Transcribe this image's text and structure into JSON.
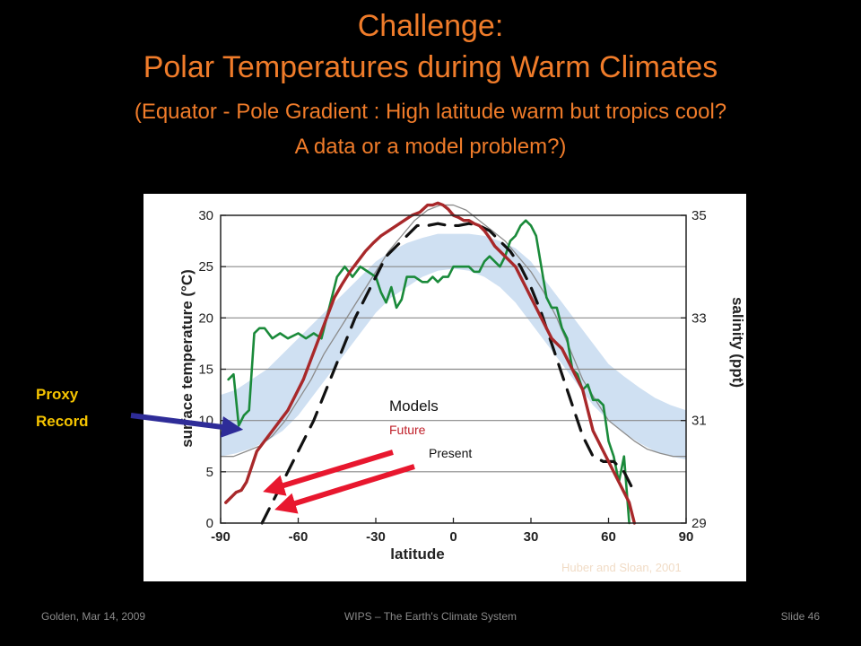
{
  "slide": {
    "title_line1": "Challenge:",
    "title_line2": "Polar Temperatures during Warm Climates",
    "title_line3": "(Equator - Pole Gradient : High latitude warm but tropics cool?",
    "title_line4": "A data or a model problem?)",
    "proxy_label_line1": "Proxy",
    "proxy_label_line2": "Record",
    "footer_left": "Golden, Mar 14, 2009",
    "footer_center": "WIPS – The Earth's Climate System",
    "footer_right": "Slide 46",
    "colors": {
      "title": "#f07c2a",
      "proxy_label": "#f5c400",
      "arrow_blue": "#2e2c98",
      "arrow_red": "#e8172e"
    }
  },
  "chart_data": {
    "type": "line",
    "xlabel": "latitude",
    "ylabel": "surface temperature (°C)",
    "y2label": "salinity (ppt)",
    "xlim": [
      -90,
      90
    ],
    "ylim": [
      0,
      30
    ],
    "y2lim": [
      29,
      35
    ],
    "x_ticks": [
      -90,
      -60,
      -30,
      0,
      30,
      60,
      90
    ],
    "y_ticks": [
      0,
      5,
      10,
      15,
      20,
      25,
      30
    ],
    "y2_ticks": [
      29,
      31,
      33,
      35
    ],
    "grid": "horizontal",
    "legend": {
      "title": "Models",
      "future": "Future",
      "present": "Present"
    },
    "source": "Huber and Sloan, 2001",
    "series": [
      {
        "key": "proxy",
        "color": "#1a8a3a",
        "style": "solid",
        "x": [
          -87,
          -85,
          -83,
          -81,
          -79,
          -77,
          -75,
          -73,
          -70,
          -67,
          -64,
          -60,
          -57,
          -54,
          -51,
          -48,
          -45,
          -42,
          -39,
          -36,
          -33,
          -30,
          -28,
          -26,
          -24,
          -22,
          -20,
          -18,
          -15,
          -12,
          -10,
          -8,
          -6,
          -4,
          -2,
          0,
          2,
          4,
          6,
          8,
          10,
          12,
          14,
          16,
          18,
          20,
          22,
          24,
          26,
          28,
          30,
          32,
          34,
          36,
          38,
          40,
          42,
          44,
          46,
          48,
          50,
          52,
          54,
          56,
          58,
          60,
          62,
          64,
          66,
          68
        ],
        "y": [
          14,
          14.5,
          9.5,
          10.5,
          11,
          18.5,
          19,
          19,
          18,
          18.5,
          18,
          18.5,
          18,
          18.5,
          18,
          21,
          24,
          25,
          24,
          25,
          24.5,
          24,
          22.5,
          21.5,
          23,
          21,
          21.8,
          24,
          24,
          23.5,
          23.5,
          24,
          23.5,
          24,
          24,
          25,
          25,
          25,
          25,
          24.5,
          24.5,
          25.5,
          26,
          25.5,
          25,
          26,
          27.5,
          28,
          29,
          29.5,
          29,
          28,
          25,
          22,
          21,
          21,
          19,
          18,
          15,
          14.5,
          13,
          13.5,
          12,
          12,
          11.5,
          8,
          6.5,
          4,
          6.5,
          0
        ]
      },
      {
        "key": "future",
        "color": "#a8282a",
        "style": "solid",
        "x": [
          -88,
          -86,
          -84,
          -82,
          -80,
          -78,
          -76,
          -73,
          -70,
          -67,
          -64,
          -61,
          -58,
          -55,
          -52,
          -49,
          -46,
          -43,
          -40,
          -37,
          -34,
          -31,
          -28,
          -25,
          -22,
          -19,
          -16,
          -13,
          -10,
          -8,
          -6,
          -4,
          -2,
          0,
          2,
          4,
          6,
          8,
          10,
          12,
          14,
          16,
          18,
          20,
          22,
          24,
          26,
          28,
          30,
          32,
          34,
          36,
          38,
          40,
          42,
          44,
          46,
          48,
          50,
          52,
          54,
          56,
          58,
          60,
          62,
          64,
          66,
          68,
          70
        ],
        "y": [
          2,
          2.5,
          3,
          3.2,
          4,
          5.5,
          7,
          8,
          9,
          10,
          11,
          12.5,
          14,
          16,
          18,
          20,
          22,
          23.3,
          24.5,
          25.5,
          26.5,
          27.3,
          28,
          28.5,
          29,
          29.5,
          30,
          30.3,
          31,
          31,
          31.2,
          31,
          30.6,
          30,
          29.8,
          29.5,
          29.5,
          29.2,
          29,
          28.5,
          27.8,
          27,
          26.5,
          26,
          25.5,
          25,
          24,
          23,
          22,
          21,
          20,
          19,
          18,
          17.5,
          17,
          16,
          15,
          14,
          13,
          11,
          9,
          8,
          7,
          6,
          5,
          4,
          3,
          2,
          0
        ]
      },
      {
        "key": "present",
        "color": "#111111",
        "style": "dashed",
        "x": [
          -74,
          -70,
          -66,
          -62,
          -58,
          -54,
          -50,
          -46,
          -42,
          -38,
          -34,
          -30,
          -26,
          -22,
          -18,
          -14,
          -10,
          -6,
          -2,
          2,
          6,
          10,
          14,
          18,
          22,
          26,
          30,
          34,
          38,
          42,
          46,
          50,
          54,
          58,
          62,
          66,
          70
        ],
        "y": [
          0,
          2,
          4,
          6,
          8,
          10,
          12.5,
          15,
          17.5,
          20,
          22,
          24,
          26,
          27,
          28,
          29,
          29,
          29.2,
          29,
          29,
          29.2,
          29,
          28.5,
          27.5,
          26.5,
          25,
          23,
          20.5,
          17.5,
          14.5,
          11.5,
          8.5,
          6.5,
          6,
          6,
          5,
          3
        ]
      },
      {
        "key": "band_upper",
        "color": "#cfe0f2",
        "style": "band",
        "x": [
          -90,
          -84,
          -78,
          -72,
          -66,
          -60,
          -54,
          -48,
          -42,
          -36,
          -30,
          -24,
          -18,
          -12,
          -6,
          0,
          6,
          12,
          18,
          24,
          30,
          36,
          42,
          48,
          54,
          60,
          66,
          72,
          78,
          84,
          90
        ],
        "y": [
          12.5,
          13,
          14,
          15,
          16.5,
          18,
          19.5,
          21,
          22.5,
          24,
          25.5,
          26.5,
          27.3,
          27.8,
          28.2,
          28.2,
          28.2,
          28,
          27.5,
          26.8,
          25.5,
          23.5,
          21.5,
          19.5,
          17.5,
          15.5,
          14.3,
          13.2,
          12.2,
          11.5,
          11
        ]
      },
      {
        "key": "band_lower",
        "color": "#cfe0f2",
        "style": "band",
        "x": [
          -90,
          -84,
          -78,
          -72,
          -66,
          -60,
          -54,
          -48,
          -42,
          -36,
          -30,
          -24,
          -18,
          -12,
          -6,
          0,
          6,
          12,
          18,
          24,
          30,
          36,
          42,
          48,
          54,
          60,
          66,
          72,
          78,
          84,
          90
        ],
        "y": [
          6.5,
          6.8,
          7.3,
          8,
          9,
          10.5,
          12.5,
          14.5,
          16.5,
          18.5,
          20.5,
          22,
          23,
          24,
          24.6,
          24.8,
          24.6,
          24,
          23,
          21.5,
          19.5,
          17.5,
          15.5,
          13.5,
          11.5,
          10,
          8.8,
          7.8,
          7,
          6.5,
          6.2
        ]
      },
      {
        "key": "gray_envelope",
        "color": "#8c8c8c",
        "style": "solid",
        "x": [
          -90,
          -85,
          -80,
          -75,
          -70,
          -65,
          -60,
          -55,
          -50,
          -45,
          -40,
          -35,
          -30,
          -25,
          -20,
          -15,
          -10,
          -5,
          0,
          5,
          10,
          15,
          20,
          25,
          30,
          35,
          40,
          45,
          50,
          55,
          60,
          65,
          70,
          75,
          80,
          85,
          90
        ],
        "y": [
          6.5,
          6.5,
          7,
          7.5,
          8.5,
          10,
          12,
          14,
          16.5,
          18.5,
          20.5,
          22.5,
          24.5,
          26.5,
          28,
          29.5,
          30.5,
          31,
          31,
          30.5,
          29.5,
          28.5,
          27.5,
          26,
          24.5,
          22.5,
          20,
          17,
          14,
          12,
          10,
          9,
          8,
          7.2,
          6.8,
          6.5,
          6.5
        ]
      }
    ]
  }
}
